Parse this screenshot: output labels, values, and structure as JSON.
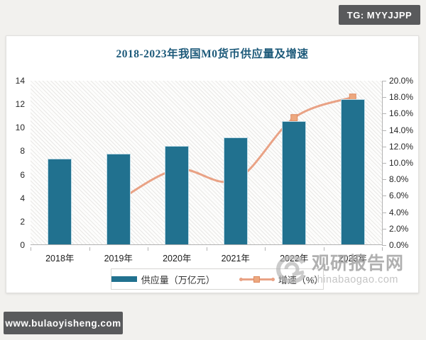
{
  "badges": {
    "top_right": "TG: MYYJJPP",
    "bottom_left": "www.bulaoyisheng.com"
  },
  "watermark": {
    "name": "观研报告网",
    "domain": "chinabaogao.com"
  },
  "colors": {
    "bar": "#21718f",
    "line": "#e9a285",
    "marker_fill": "#eda87f",
    "marker_edge": "#dd8a60",
    "title": "#1d5a7a",
    "badge_bg": "#595a5c",
    "axis_line": "#b3b3b3",
    "axis_text": "#262626",
    "watermark_text": "#a6a6a6",
    "watermark_domain": "#bcbcbc"
  },
  "chart_data": {
    "type": "bar",
    "title": "2018-2023年我国M0货币供应量及增速",
    "categories": [
      "2018年",
      "2019年",
      "2020年",
      "2021年",
      "2022年",
      "2023年"
    ],
    "series": [
      {
        "name": "供应量（万亿元）",
        "type": "bar",
        "axis": "left",
        "values": [
          7.3,
          7.7,
          8.4,
          9.1,
          10.5,
          12.4
        ]
      },
      {
        "name": "增速（%）",
        "type": "line",
        "axis": "right",
        "values": [
          null,
          5.4,
          9.2,
          7.9,
          15.5,
          18.0
        ]
      }
    ],
    "left_axis": {
      "min": 0,
      "max": 14,
      "ticks": [
        "14",
        "12",
        "10",
        "8",
        "6",
        "4",
        "2",
        "0"
      ]
    },
    "right_axis": {
      "min": 0,
      "max": 20,
      "ticks": [
        "20.0%",
        "18.0%",
        "16.0%",
        "14.0%",
        "12.0%",
        "10.0%",
        "8.0%",
        "6.0%",
        "4.0%",
        "2.0%",
        "0.0%"
      ]
    },
    "legend_position": "bottom",
    "grid": false
  }
}
